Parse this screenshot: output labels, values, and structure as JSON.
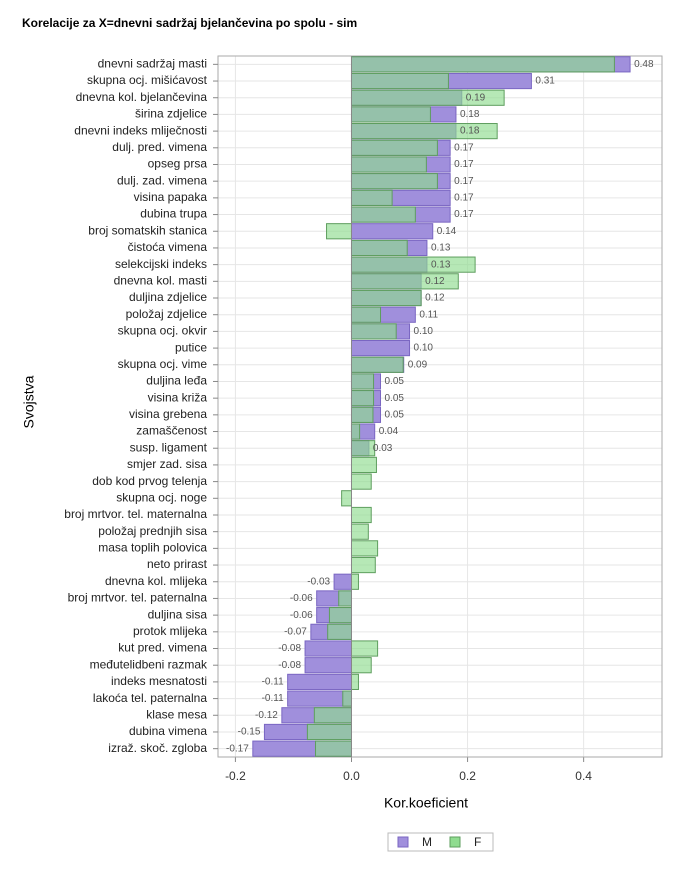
{
  "chart_data": {
    "type": "hbar",
    "title": "Korelacije za X=dnevni sadržaj bjelančevina po spolu - sim",
    "x_label": "Kor.koeficient",
    "y_label": "Svojstva",
    "categories": [
      "dnevni sadržaj masti",
      "skupna ocj. mišićavost",
      "dnevna kol. bjelančevina",
      "širina zdjelice",
      "dnevni indeks mliječnosti",
      "dulj. pred. vimena",
      "opseg prsa",
      "dulj. zad. vimena",
      "visina papaka",
      "dubina trupa",
      "broj somatskih stanica",
      "čistoća vimena",
      "selekcijski indeks",
      "dnevna kol. masti",
      "duljina zdjelice",
      "položaj zdjelice",
      "skupna ocj. okvir",
      "putice",
      "skupna ocj. vime",
      "duljina leđa",
      "visina križa",
      "visina grebena",
      "zamaščenost",
      "susp. ligament",
      "smjer zad. sisa",
      "dob kod prvog telenja",
      "skupna ocj. noge",
      "broj mrtvor. tel. maternalna",
      "položaj prednjih sisa",
      "masa toplih polovica",
      "neto prirast",
      "dnevna kol. mlijeka",
      "broj mrtvor. tel. paternalna",
      "duljina sisa",
      "protok mlijeka",
      "kut pred. vimena",
      "međutelidbeni razmak",
      "indeks mesnatosti",
      "lakoća tel. paternalna",
      "klase mesa",
      "dubina vimena",
      "izraž. skoč. zgloba"
    ],
    "series": [
      {
        "name": "M",
        "color": "#a08fdc",
        "values": [
          0.48,
          0.31,
          0.19,
          0.18,
          0.18,
          0.17,
          0.17,
          0.17,
          0.17,
          0.17,
          0.14,
          0.13,
          0.13,
          0.12,
          0.12,
          0.11,
          0.1,
          0.1,
          0.09,
          0.05,
          0.05,
          0.05,
          0.04,
          0.03,
          null,
          null,
          null,
          null,
          null,
          null,
          null,
          -0.03,
          -0.06,
          -0.06,
          -0.07,
          -0.08,
          -0.08,
          -0.11,
          -0.11,
          -0.12,
          -0.15,
          -0.17
        ],
        "value_labels": [
          "0.48",
          "0.31",
          "0.19",
          "0.18",
          "0.18",
          "0.17",
          "0.17",
          "0.17",
          "0.17",
          "0.17",
          "0.14",
          "0.13",
          "0.13",
          "0.12",
          "0.12",
          "0.11",
          "0.10",
          "0.10",
          "0.09",
          "0.05",
          "0.05",
          "0.05",
          "0.04",
          "0.03",
          null,
          null,
          null,
          null,
          null,
          null,
          null,
          "-0.03",
          "-0.06",
          "-0.06",
          "-0.07",
          "-0.08",
          "-0.08",
          "-0.11",
          "-0.11",
          "-0.12",
          "-0.15",
          "-0.17"
        ]
      },
      {
        "name": "F",
        "color": "#8fdc8f",
        "values": [
          0.453,
          0.167,
          0.263,
          0.136,
          0.251,
          0.148,
          0.129,
          0.148,
          0.07,
          0.11,
          -0.043,
          0.096,
          0.213,
          0.184,
          0.12,
          0.05,
          0.077,
          null,
          0.089,
          0.038,
          0.038,
          0.037,
          0.014,
          0.04,
          0.043,
          0.034,
          -0.017,
          0.034,
          0.029,
          0.045,
          0.041,
          0.012,
          -0.022,
          -0.038,
          -0.041,
          0.045,
          0.034,
          0.012,
          -0.015,
          -0.064,
          -0.076,
          -0.062
        ]
      }
    ],
    "xlim": [
      -0.23,
      0.535
    ],
    "xticks": [
      -0.2,
      {
        "value": 0,
        "label": "0.0"
      },
      0.2,
      0.4
    ],
    "grid": true,
    "legend": "bottom"
  }
}
